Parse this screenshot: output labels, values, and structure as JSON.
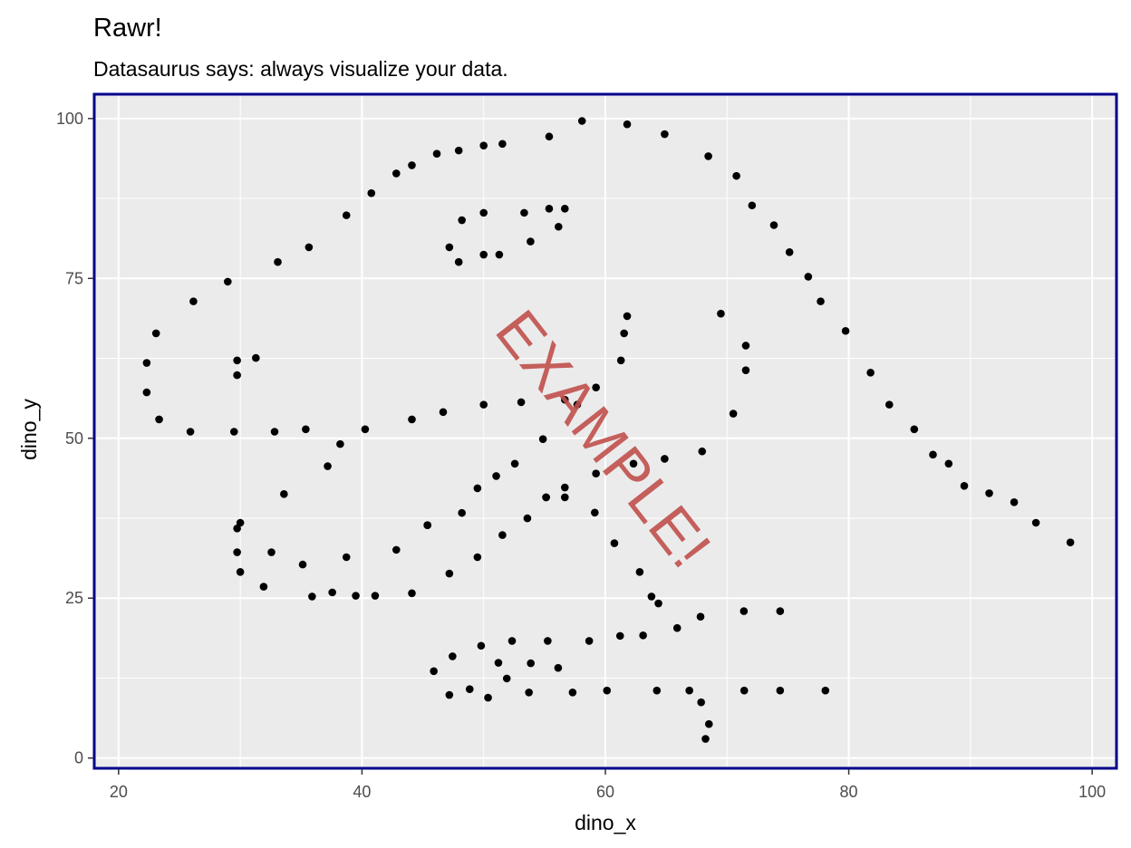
{
  "chart_data": {
    "type": "scatter",
    "title": "Rawr!",
    "subtitle": "Datasaurus says: always visualize your data.",
    "xlabel": "dino_x",
    "ylabel": "dino_y",
    "xlim": [
      18,
      102
    ],
    "ylim": [
      -1.6,
      103.8
    ],
    "x_ticks": [
      20,
      40,
      60,
      80,
      100
    ],
    "y_ticks": [
      0,
      25,
      50,
      75,
      100
    ],
    "x_tick_labels": [
      "20",
      "40",
      "60",
      "80",
      "100"
    ],
    "y_tick_labels": [
      "0",
      "25",
      "50",
      "75",
      "100"
    ],
    "grid": true,
    "legend": "none",
    "panel_background": "#ebebeb",
    "panel_border_color": "#00008b",
    "point_color": "#000000",
    "watermark": {
      "text": "EXAMPLE!",
      "color": "#c0504d"
    },
    "points": [
      [
        55.38,
        97.18
      ],
      [
        51.54,
        96.03
      ],
      [
        46.15,
        94.49
      ],
      [
        42.82,
        91.41
      ],
      [
        40.77,
        88.33
      ],
      [
        38.72,
        84.87
      ],
      [
        35.64,
        79.87
      ],
      [
        33.08,
        77.56
      ],
      [
        28.97,
        74.49
      ],
      [
        26.15,
        71.41
      ],
      [
        23.08,
        66.41
      ],
      [
        22.31,
        61.79
      ],
      [
        22.31,
        57.18
      ],
      [
        23.33,
        52.95
      ],
      [
        25.9,
        51.03
      ],
      [
        29.49,
        51.03
      ],
      [
        32.82,
        51.03
      ],
      [
        35.38,
        51.41
      ],
      [
        40.26,
        51.41
      ],
      [
        44.1,
        52.95
      ],
      [
        46.67,
        54.1
      ],
      [
        50.0,
        55.26
      ],
      [
        53.08,
        55.64
      ],
      [
        56.67,
        56.03
      ],
      [
        59.23,
        57.95
      ],
      [
        61.28,
        62.18
      ],
      [
        61.54,
        66.41
      ],
      [
        61.79,
        69.1
      ],
      [
        57.69,
        55.26
      ],
      [
        54.87,
        49.87
      ],
      [
        52.56,
        46.03
      ],
      [
        51.03,
        44.1
      ],
      [
        49.49,
        42.18
      ],
      [
        48.21,
        38.33
      ],
      [
        45.38,
        36.41
      ],
      [
        42.82,
        32.56
      ],
      [
        38.72,
        31.41
      ],
      [
        35.13,
        30.26
      ],
      [
        32.56,
        32.18
      ],
      [
        30.0,
        36.79
      ],
      [
        29.74,
        35.9
      ],
      [
        29.74,
        32.18
      ],
      [
        30.0,
        29.1
      ],
      [
        31.92,
        26.79
      ],
      [
        35.9,
        25.26
      ],
      [
        37.56,
        25.9
      ],
      [
        39.49,
        25.38
      ],
      [
        41.08,
        25.38
      ],
      [
        44.1,
        25.77
      ],
      [
        45.9,
        13.59
      ],
      [
        47.18,
        9.87
      ],
      [
        47.44,
        15.9
      ],
      [
        48.85,
        10.77
      ],
      [
        49.79,
        17.56
      ],
      [
        50.36,
        9.44
      ],
      [
        51.21,
        14.9
      ],
      [
        51.9,
        12.44
      ],
      [
        52.33,
        18.31
      ],
      [
        53.72,
        10.26
      ],
      [
        53.87,
        14.82
      ],
      [
        55.26,
        18.31
      ],
      [
        56.12,
        14.1
      ],
      [
        57.31,
        10.26
      ],
      [
        58.67,
        18.31
      ],
      [
        60.13,
        10.56
      ],
      [
        61.21,
        19.1
      ],
      [
        63.1,
        19.18
      ],
      [
        64.23,
        10.56
      ],
      [
        65.9,
        20.33
      ],
      [
        66.9,
        10.56
      ],
      [
        67.82,
        22.1
      ],
      [
        67.87,
        8.72
      ],
      [
        68.23,
        3.0
      ],
      [
        68.51,
        5.31
      ],
      [
        71.38,
        22.97
      ],
      [
        71.41,
        10.56
      ],
      [
        74.36,
        22.97
      ],
      [
        74.36,
        10.56
      ],
      [
        78.08,
        10.56
      ],
      [
        63.79,
        25.26
      ],
      [
        64.36,
        24.18
      ],
      [
        62.82,
        29.1
      ],
      [
        60.74,
        33.59
      ],
      [
        59.13,
        38.38
      ],
      [
        56.67,
        40.77
      ],
      [
        56.67,
        42.31
      ],
      [
        55.13,
        40.77
      ],
      [
        53.59,
        37.49
      ],
      [
        51.54,
        34.87
      ],
      [
        49.49,
        31.41
      ],
      [
        47.18,
        28.85
      ],
      [
        45.38,
        36.41
      ],
      [
        37.18,
        45.64
      ],
      [
        38.21,
        49.1
      ],
      [
        33.59,
        41.28
      ],
      [
        29.74,
        59.87
      ],
      [
        29.74,
        62.18
      ],
      [
        31.28,
        62.56
      ],
      [
        47.18,
        79.87
      ],
      [
        47.95,
        77.56
      ],
      [
        48.21,
        84.1
      ],
      [
        50.0,
        85.26
      ],
      [
        50.0,
        78.72
      ],
      [
        51.28,
        78.72
      ],
      [
        53.33,
        85.26
      ],
      [
        53.85,
        80.77
      ],
      [
        55.38,
        85.9
      ],
      [
        56.15,
        83.08
      ],
      [
        56.67,
        85.9
      ],
      [
        44.1,
        92.69
      ],
      [
        47.95,
        95.0
      ],
      [
        50.0,
        95.77
      ],
      [
        58.08,
        99.62
      ],
      [
        61.79,
        99.1
      ],
      [
        64.87,
        97.56
      ],
      [
        68.46,
        94.1
      ],
      [
        70.77,
        91.03
      ],
      [
        72.05,
        86.41
      ],
      [
        73.85,
        83.33
      ],
      [
        75.13,
        79.1
      ],
      [
        76.67,
        75.26
      ],
      [
        77.69,
        71.41
      ],
      [
        79.74,
        66.79
      ],
      [
        81.79,
        60.26
      ],
      [
        83.33,
        55.26
      ],
      [
        85.38,
        51.41
      ],
      [
        86.92,
        47.44
      ],
      [
        88.21,
        46.03
      ],
      [
        89.49,
        42.56
      ],
      [
        91.54,
        41.41
      ],
      [
        93.59,
        40.0
      ],
      [
        95.38,
        36.79
      ],
      [
        98.21,
        33.72
      ],
      [
        69.49,
        69.49
      ],
      [
        71.54,
        64.49
      ],
      [
        71.54,
        60.64
      ],
      [
        70.51,
        53.85
      ],
      [
        67.95,
        47.95
      ],
      [
        64.87,
        46.79
      ],
      [
        62.31,
        46.03
      ],
      [
        59.23,
        44.49
      ],
      [
        55.13,
        40.77
      ]
    ]
  }
}
